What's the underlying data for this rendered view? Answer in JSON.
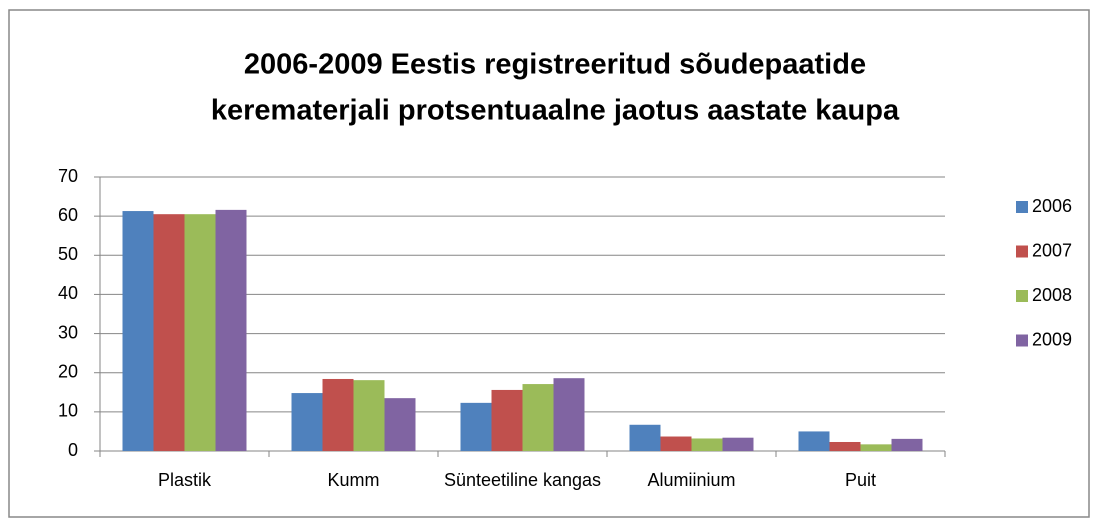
{
  "chart_data": {
    "type": "bar",
    "title": [
      "2006-2009 Eestis registreeritud sõudepaatide",
      "kerematerjali protsentuaalne jaotus aastate kaupa"
    ],
    "categories": [
      "Plastik",
      "Kumm",
      "Sünteetiline kangas",
      "Alumiinium",
      "Puit"
    ],
    "series": [
      {
        "name": "2006",
        "color": "#4f81bd",
        "values": [
          61.3,
          14.8,
          12.3,
          6.7,
          5.0
        ]
      },
      {
        "name": "2007",
        "color": "#c0504d",
        "values": [
          60.5,
          18.4,
          15.6,
          3.7,
          2.3
        ]
      },
      {
        "name": "2008",
        "color": "#9bbb59",
        "values": [
          60.5,
          18.1,
          17.1,
          3.2,
          1.7
        ]
      },
      {
        "name": "2009",
        "color": "#8064a2",
        "values": [
          61.6,
          13.5,
          18.6,
          3.4,
          3.1
        ]
      }
    ],
    "ylim": [
      0,
      70
    ],
    "yticks": [
      0,
      10,
      20,
      30,
      40,
      50,
      60,
      70
    ],
    "grid": true,
    "legend": "right"
  }
}
